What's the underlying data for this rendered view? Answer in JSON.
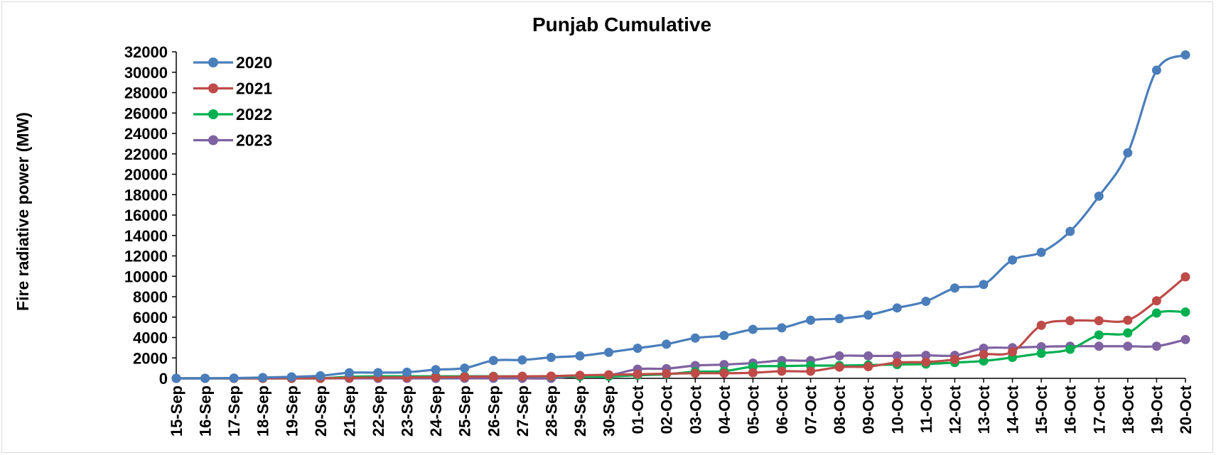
{
  "chart_data": {
    "type": "line",
    "title": "Punjab Cumulative",
    "xlabel": "",
    "ylabel": "Fire radiative power (MW)",
    "ylim": [
      0,
      32000
    ],
    "yticks": [
      0,
      2000,
      4000,
      6000,
      8000,
      10000,
      12000,
      14000,
      16000,
      18000,
      20000,
      22000,
      24000,
      26000,
      28000,
      30000,
      32000
    ],
    "grid": false,
    "legend": "top-left",
    "categories": [
      "15-Sep",
      "16-Sep",
      "17-Sep",
      "18-Sep",
      "19-Sep",
      "20-Sep",
      "21-Sep",
      "22-Sep",
      "23-Sep",
      "24-Sep",
      "25-Sep",
      "26-Sep",
      "27-Sep",
      "28-Sep",
      "29-Sep",
      "30-Sep",
      "01-Oct",
      "02-Oct",
      "03-Oct",
      "04-Oct",
      "05-Oct",
      "06-Oct",
      "07-Oct",
      "08-Oct",
      "09-Oct",
      "10-Oct",
      "11-Oct",
      "12-Oct",
      "13-Oct",
      "14-Oct",
      "15-Oct",
      "16-Oct",
      "17-Oct",
      "18-Oct",
      "19-Oct",
      "20-Oct"
    ],
    "series": [
      {
        "name": "2020",
        "color": "#4a7ebb",
        "values": [
          0,
          0,
          30,
          80,
          150,
          250,
          550,
          560,
          600,
          850,
          1000,
          1750,
          1800,
          2050,
          2200,
          2550,
          2950,
          3350,
          3950,
          4200,
          4800,
          4950,
          5700,
          5850,
          6200,
          6900,
          7550,
          8850,
          9200,
          11600,
          12350,
          14400,
          17850,
          22100,
          30200,
          31700
        ]
      },
      {
        "name": "2021",
        "color": "#be4b48",
        "values": [
          0,
          0,
          0,
          0,
          0,
          0,
          50,
          80,
          100,
          120,
          150,
          180,
          200,
          220,
          300,
          350,
          400,
          450,
          500,
          500,
          550,
          700,
          700,
          1100,
          1150,
          1550,
          1600,
          1850,
          2350,
          2600,
          5200,
          5650,
          5650,
          5700,
          7600,
          9950
        ]
      },
      {
        "name": "2022",
        "color": "#00b050",
        "values": [
          0,
          0,
          0,
          0,
          0,
          0,
          150,
          200,
          200,
          200,
          200,
          200,
          200,
          200,
          200,
          200,
          300,
          400,
          650,
          700,
          1150,
          1200,
          1250,
          1250,
          1300,
          1350,
          1400,
          1550,
          1700,
          2050,
          2450,
          2850,
          4250,
          4450,
          6400,
          6500
        ]
      },
      {
        "name": "2023",
        "color": "#7e62a1",
        "values": [
          0,
          0,
          0,
          0,
          0,
          0,
          0,
          0,
          0,
          0,
          0,
          0,
          0,
          0,
          250,
          300,
          900,
          950,
          1250,
          1350,
          1500,
          1750,
          1750,
          2200,
          2200,
          2200,
          2250,
          2250,
          2950,
          3000,
          3100,
          3150,
          3150,
          3150,
          3150,
          3800
        ]
      }
    ]
  }
}
